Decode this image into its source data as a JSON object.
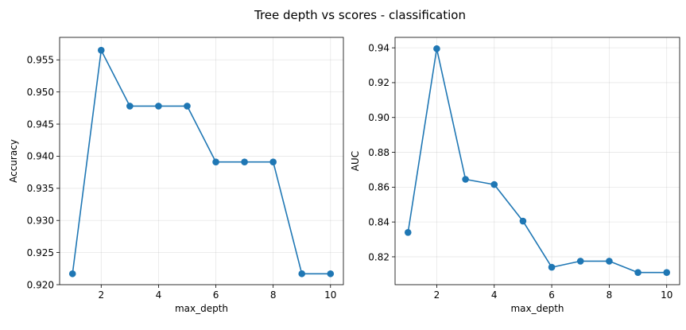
{
  "figure": {
    "title": "Tree depth vs scores - classification"
  },
  "style": {
    "line_color": "#1f77b4",
    "grid_color": "#b0b0b0"
  },
  "chart_data": [
    {
      "type": "line",
      "title": "",
      "xlabel": "max_depth",
      "ylabel": "Accuracy",
      "grid": true,
      "xlim": [
        0.55,
        10.45
      ],
      "ylim": [
        0.92,
        0.9585
      ],
      "xticks": [
        2,
        4,
        6,
        8,
        10
      ],
      "xtick_labels": [
        "2",
        "4",
        "6",
        "8",
        "10"
      ],
      "yticks": [
        0.92,
        0.925,
        0.93,
        0.935,
        0.94,
        0.945,
        0.95,
        0.955
      ],
      "ytick_labels": [
        "0.920",
        "0.925",
        "0.930",
        "0.935",
        "0.940",
        "0.945",
        "0.950",
        "0.955"
      ],
      "x": [
        1,
        2,
        3,
        4,
        5,
        6,
        7,
        8,
        9,
        10
      ],
      "series": [
        {
          "values": [
            0.9217,
            0.9565,
            0.9478,
            0.9478,
            0.9478,
            0.9391,
            0.9391,
            0.9391,
            0.9217,
            0.9217
          ]
        }
      ]
    },
    {
      "type": "line",
      "title": "",
      "xlabel": "max_depth",
      "ylabel": "AUC",
      "grid": true,
      "xlim": [
        0.55,
        10.45
      ],
      "ylim": [
        0.804,
        0.946
      ],
      "xticks": [
        2,
        4,
        6,
        8,
        10
      ],
      "xtick_labels": [
        "2",
        "4",
        "6",
        "8",
        "10"
      ],
      "yticks": [
        0.82,
        0.84,
        0.86,
        0.88,
        0.9,
        0.92,
        0.94
      ],
      "ytick_labels": [
        "0.82",
        "0.84",
        "0.86",
        "0.88",
        "0.90",
        "0.92",
        "0.94"
      ],
      "x": [
        1,
        2,
        3,
        4,
        5,
        6,
        7,
        8,
        9,
        10
      ],
      "series": [
        {
          "values": [
            0.834,
            0.9395,
            0.8645,
            0.8615,
            0.8405,
            0.814,
            0.8175,
            0.8175,
            0.811,
            0.811
          ]
        }
      ]
    }
  ]
}
